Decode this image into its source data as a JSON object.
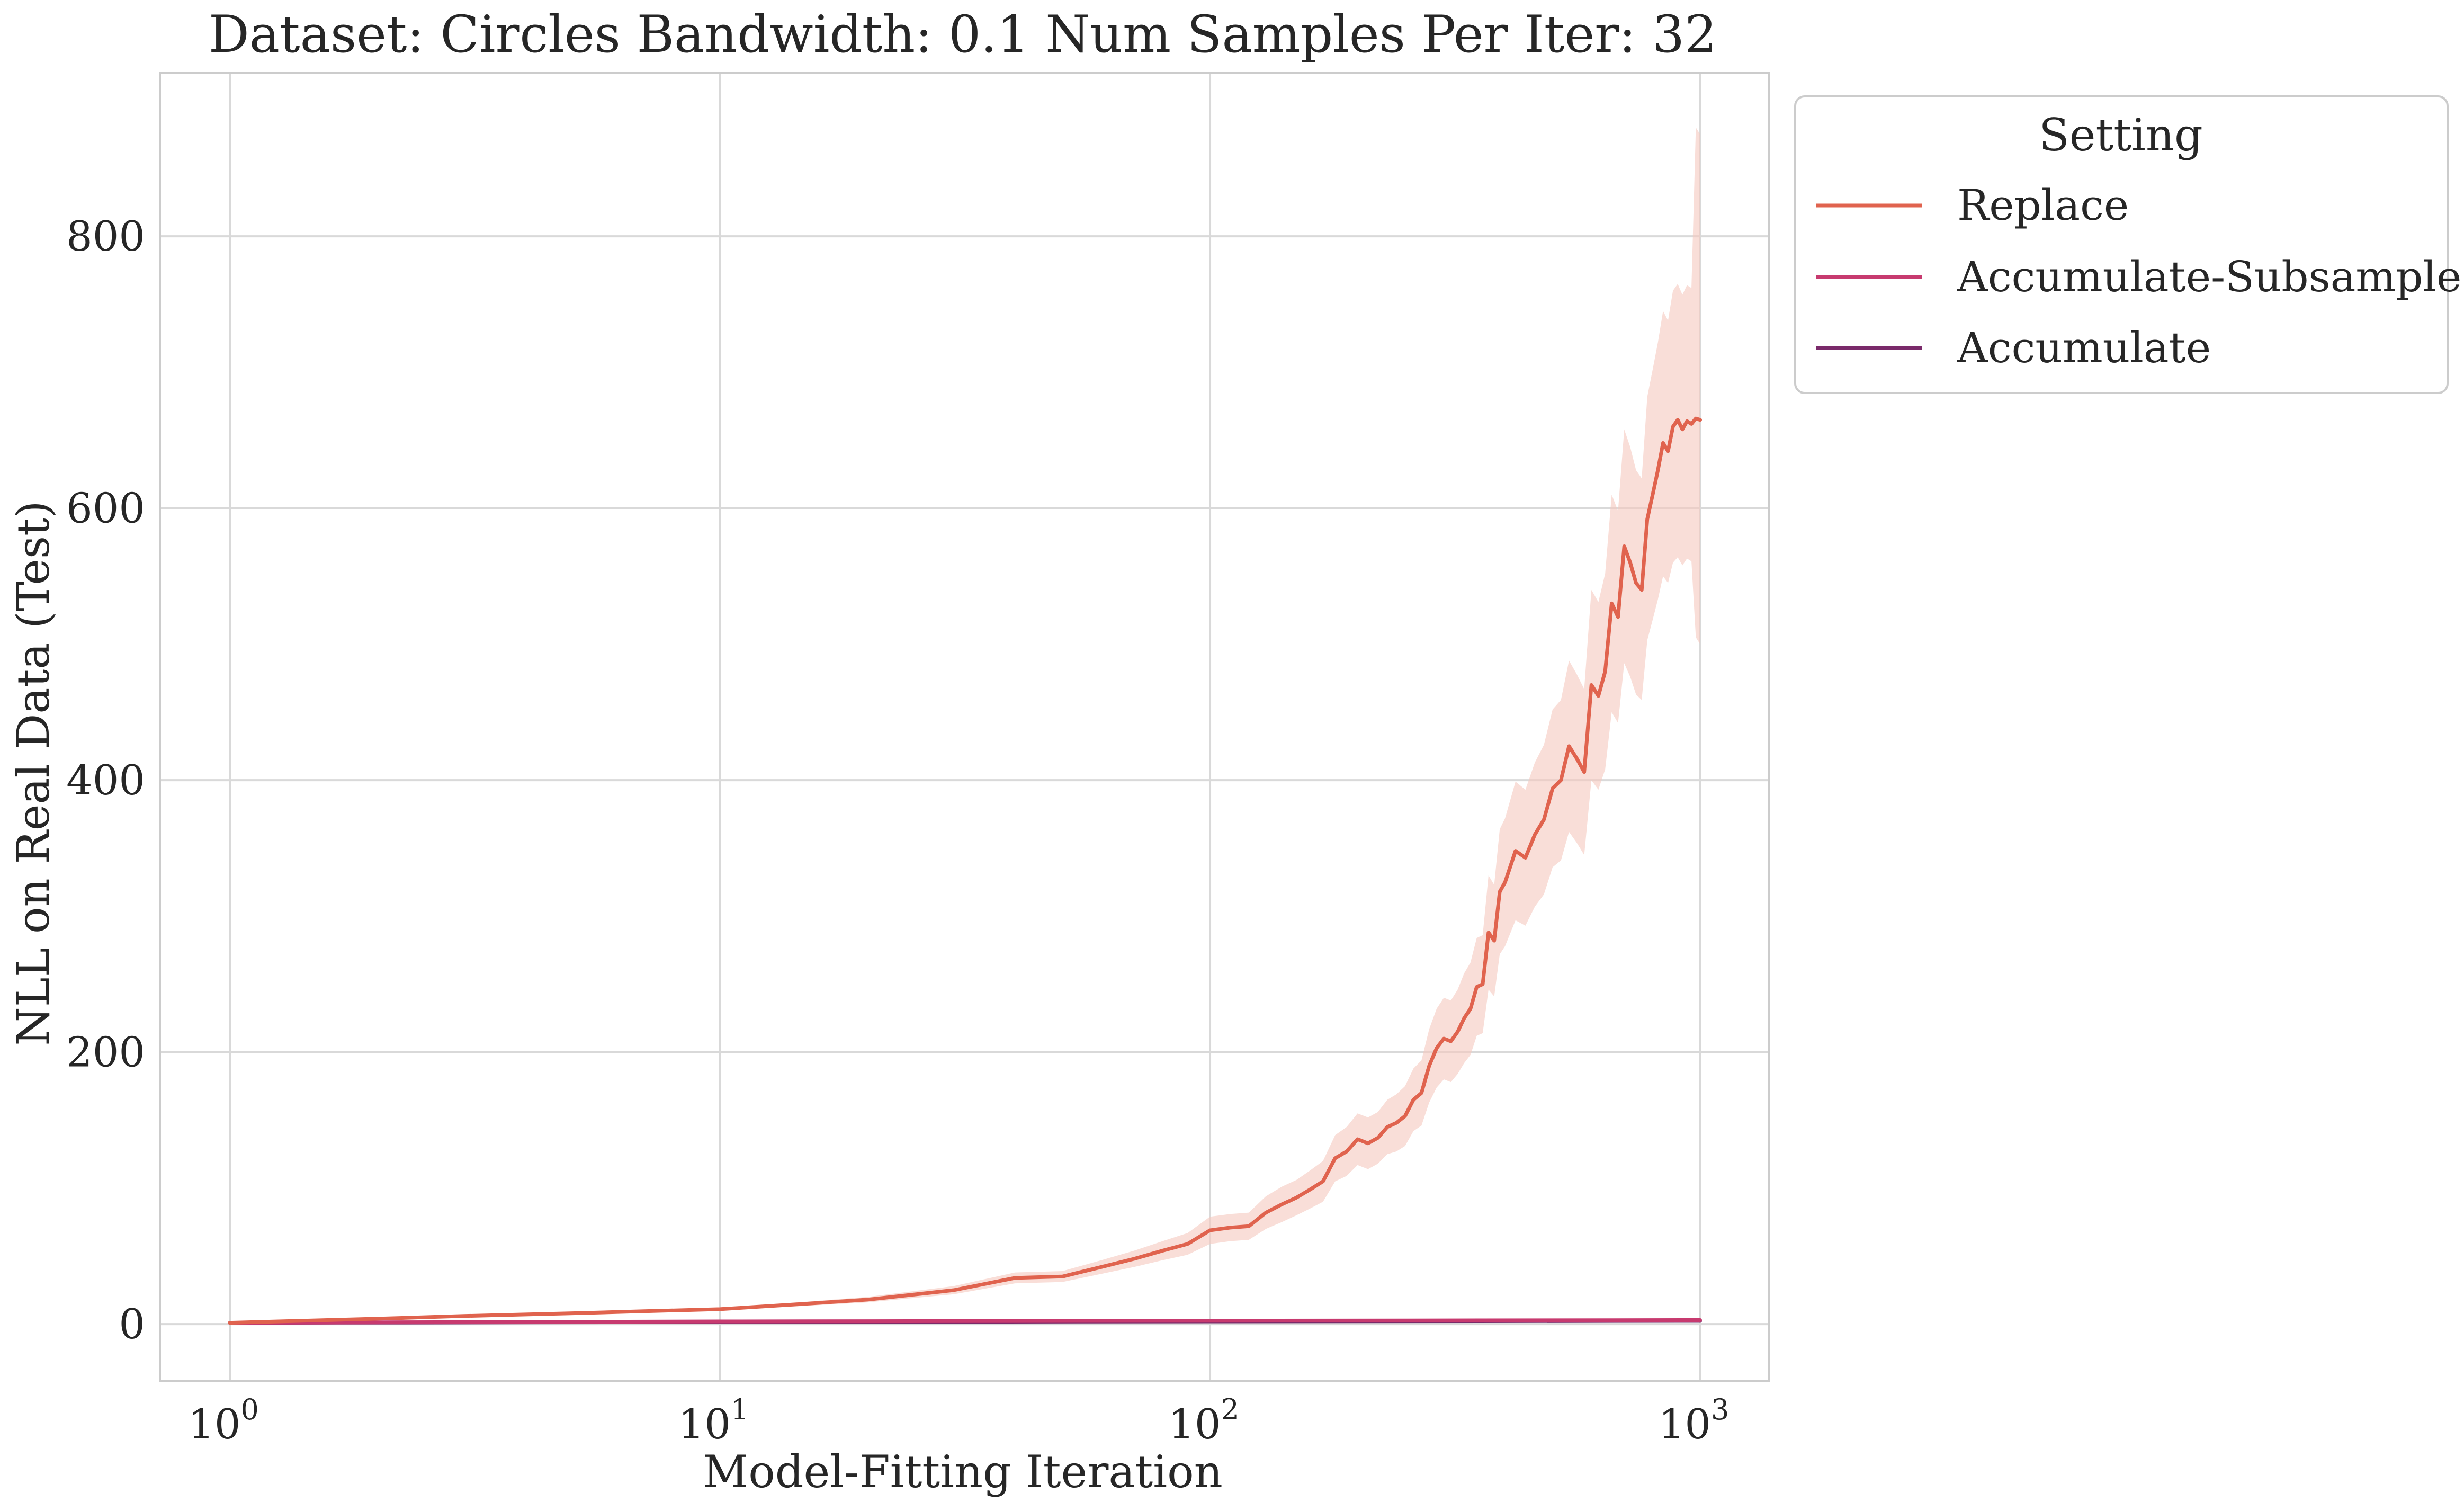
{
  "chart_data": {
    "type": "line",
    "title": "Dataset: Circles Bandwidth: 0.1 Num Samples Per Iter: 32",
    "xlabel": "Model-Fitting Iteration",
    "ylabel": "NLL on Real Data (Test)",
    "xscale": "log",
    "xlim": [
      0.72,
      1380
    ],
    "ylim": [
      -42,
      920
    ],
    "xticks": [
      1,
      10,
      100,
      1000
    ],
    "xtick_labels": [
      {
        "base": "10",
        "exp": "0"
      },
      {
        "base": "10",
        "exp": "1"
      },
      {
        "base": "10",
        "exp": "2"
      },
      {
        "base": "10",
        "exp": "3"
      }
    ],
    "yticks": [
      0,
      200,
      400,
      600,
      800
    ],
    "ytick_labels": [
      "0",
      "200",
      "400",
      "600",
      "800"
    ],
    "grid": true,
    "legend": {
      "title": "Setting",
      "placement": "outside-upper-right"
    },
    "series": [
      {
        "name": "Replace",
        "color": "#e0634e",
        "band_color": "#f5c8be",
        "x": [
          1,
          2,
          3,
          5,
          7,
          10,
          15,
          20,
          30,
          40,
          50,
          60,
          70,
          80,
          90,
          100,
          110,
          120,
          130,
          140,
          150,
          160,
          170,
          180,
          190,
          200,
          210,
          220,
          230,
          240,
          250,
          260,
          270,
          280,
          290,
          300,
          310,
          320,
          330,
          340,
          350,
          360,
          370,
          380,
          390,
          400,
          420,
          440,
          460,
          480,
          500,
          520,
          540,
          560,
          580,
          600,
          620,
          640,
          660,
          680,
          700,
          720,
          740,
          760,
          780,
          800,
          820,
          840,
          860,
          880,
          900,
          920,
          940,
          960,
          980,
          1000
        ],
        "y": [
          1,
          4,
          6,
          8,
          9.5,
          11,
          15,
          18,
          25,
          34,
          35,
          42,
          48,
          54,
          59,
          69,
          71,
          72,
          82,
          88,
          93,
          99,
          105,
          122,
          127,
          136,
          133,
          137,
          145,
          148,
          153,
          165,
          170,
          190,
          203,
          210,
          208,
          215,
          225,
          232,
          248,
          250,
          288,
          282,
          318,
          325,
          348,
          343,
          360,
          371,
          394,
          400,
          425,
          416,
          406,
          470,
          462,
          480,
          530,
          520,
          572,
          560,
          545,
          540,
          592,
          610,
          628,
          648,
          642,
          660,
          665,
          658,
          664,
          662,
          666,
          665
        ],
        "lower": [
          1,
          3.6,
          5.4,
          7.2,
          8.5,
          10,
          13.5,
          16,
          22,
          30,
          31,
          37,
          42,
          47,
          51,
          59,
          61,
          62,
          70,
          75,
          80,
          85,
          90,
          105,
          109,
          117,
          114,
          118,
          125,
          127,
          131,
          142,
          146,
          163,
          174,
          180,
          178,
          184,
          192,
          198,
          212,
          214,
          246,
          241,
          272,
          278,
          297,
          293,
          307,
          316,
          336,
          341,
          362,
          354,
          345,
          400,
          393,
          408,
          450,
          442,
          486,
          476,
          463,
          459,
          503,
          518,
          533,
          550,
          545,
          560,
          564,
          558,
          563,
          561,
          505,
          500
        ],
        "upper": [
          1,
          4.4,
          6.6,
          8.8,
          10.5,
          12,
          16.5,
          20,
          28,
          38,
          39,
          47,
          54,
          61,
          67,
          79,
          81,
          82,
          94,
          101,
          106,
          113,
          120,
          139,
          145,
          155,
          152,
          156,
          165,
          169,
          175,
          188,
          194,
          217,
          232,
          240,
          238,
          246,
          258,
          266,
          284,
          286,
          330,
          323,
          364,
          372,
          399,
          393,
          413,
          426,
          452,
          459,
          488,
          478,
          467,
          540,
          531,
          552,
          610,
          598,
          658,
          645,
          628,
          622,
          682,
          702,
          722,
          745,
          738,
          760,
          765,
          757,
          764,
          762,
          880,
          875
        ]
      },
      {
        "name": "Accumulate-Subsample",
        "color": "#c73a6f",
        "x": [
          1,
          10,
          100,
          1000
        ],
        "y": [
          1,
          2,
          2.5,
          3
        ]
      },
      {
        "name": "Accumulate",
        "color": "#7a2a6a",
        "x": [
          1,
          10,
          100,
          1000
        ],
        "y": [
          1,
          1.6,
          2,
          2.4
        ]
      }
    ]
  }
}
